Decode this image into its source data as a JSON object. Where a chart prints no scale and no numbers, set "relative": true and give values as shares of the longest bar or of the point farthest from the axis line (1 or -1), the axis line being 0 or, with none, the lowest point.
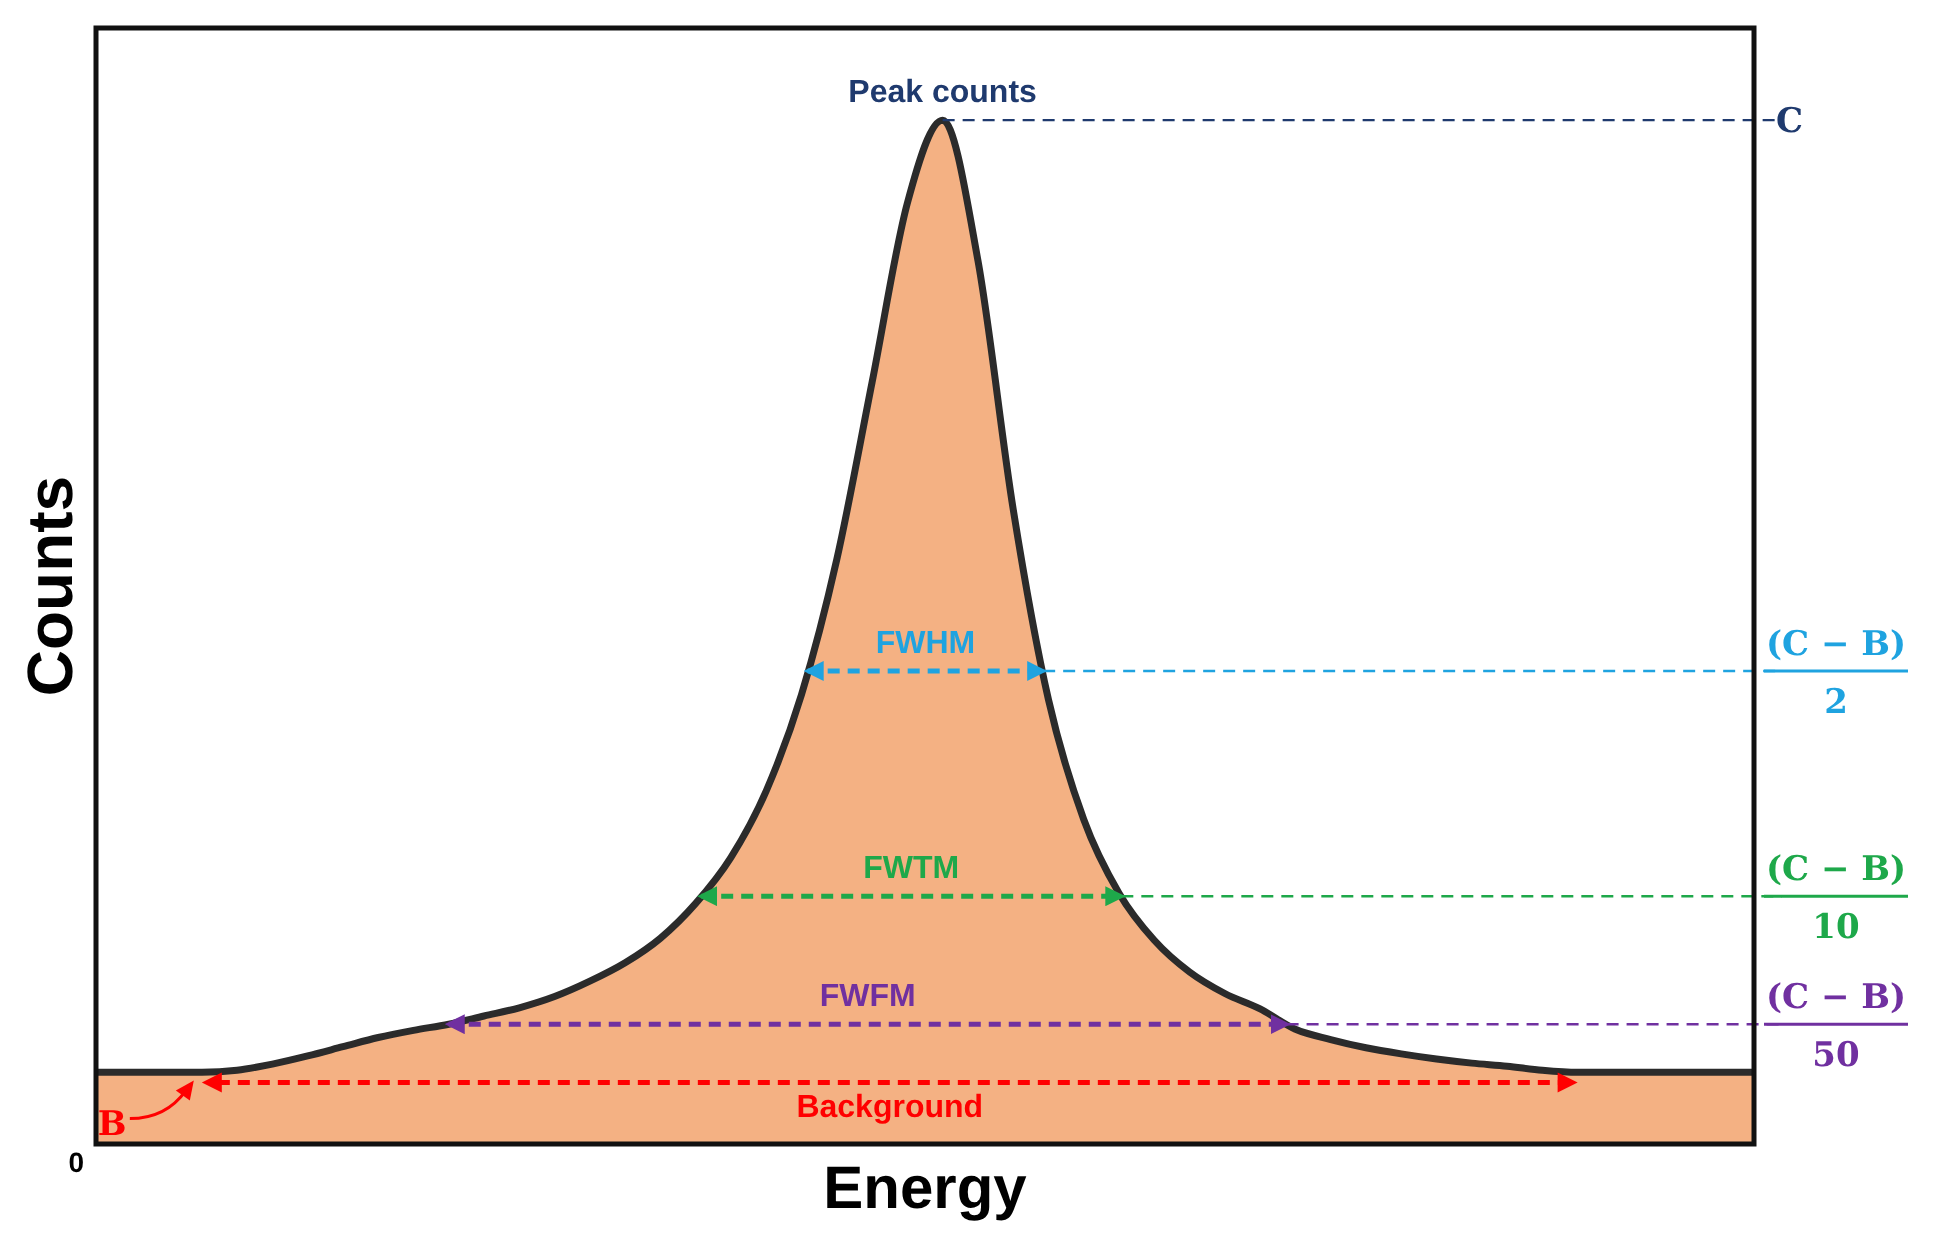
{
  "chart_data": {
    "type": "area",
    "relative": true,
    "xlabel": "Energy",
    "ylabel": "Counts",
    "categories": [
      null,
      null,
      null,
      null,
      null,
      null,
      null,
      null,
      null,
      null,
      null,
      null,
      null,
      null,
      null,
      null,
      null,
      null,
      null,
      null,
      null,
      null,
      null,
      null,
      null,
      null,
      null,
      null,
      null,
      null,
      null,
      null,
      null,
      null,
      null,
      null,
      null,
      null,
      null,
      null,
      null,
      null,
      null,
      null,
      null,
      null,
      null,
      null
    ],
    "series": [
      {
        "color": "#f4b183",
        "values": [
          0.07,
          0.07,
          0.07,
          0.07,
          0.072,
          0.078,
          0.086,
          0.095,
          0.104,
          0.111,
          0.117,
          0.125,
          0.133,
          0.144,
          0.159,
          0.177,
          0.201,
          0.235,
          0.28,
          0.345,
          0.439,
          0.571,
          0.744,
          0.919,
          1,
          0.863,
          0.62,
          0.434,
          0.317,
          0.245,
          0.199,
          0.168,
          0.147,
          0.132,
          0.112,
          0.102,
          0.094,
          0.088,
          0.083,
          0.079,
          0.076,
          0.072,
          0.07,
          0.07,
          0.07,
          0.07,
          0.07,
          0.07
        ]
      }
    ],
    "ref_lines": [
      {
        "axis": "y",
        "value": 1,
        "label": "C",
        "color": "#1f3a6e",
        "line_style": "dashed"
      },
      {
        "axis": "y",
        "value": 0.462,
        "label": "(C − B)\n2",
        "color": "#1fa3e0",
        "line_style": "dashed"
      },
      {
        "axis": "y",
        "value": 0.242,
        "label": "(C − B)\n10",
        "color": "#1ea84a",
        "line_style": "dashed"
      },
      {
        "axis": "y",
        "value": 0.117,
        "label": "(C − B)\n50",
        "color": "#7030a0",
        "line_style": "dashed"
      },
      {
        "axis": "y",
        "value": 0.06,
        "label": "B",
        "color": "#ff0000",
        "line_style": "dashed"
      }
    ],
    "annotations": [
      {
        "text": "Peak counts",
        "y": 1
      },
      {
        "text": "FWHM",
        "y": 0.462
      },
      {
        "text": "FWTM",
        "y": 0.242
      },
      {
        "text": "FWFM",
        "y": 0.117
      },
      {
        "text": "Background",
        "y": 0.06
      },
      "0"
    ]
  }
}
